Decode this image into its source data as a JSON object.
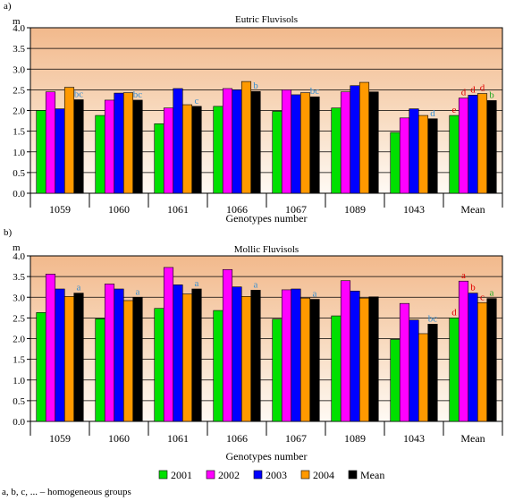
{
  "legend": {
    "items": [
      {
        "label": "2001",
        "color": "#00e000"
      },
      {
        "label": "2002",
        "color": "#ff00ff"
      },
      {
        "label": "2003",
        "color": "#0000ff"
      },
      {
        "label": "2004",
        "color": "#ff9900"
      },
      {
        "label": "Mean",
        "color": "#000000"
      }
    ]
  },
  "footnote": "a, b, c, ... – homogeneous groups",
  "chart_data": [
    {
      "type": "bar",
      "panel": "a)",
      "title": "Eutric Fluvisols",
      "unit": "m",
      "xlabel": "Genotypes number",
      "ylabel": "",
      "ylim": [
        0,
        4
      ],
      "yticks": [
        "0.0",
        "0.5",
        "1.0",
        "1.5",
        "2.0",
        "2.5",
        "3.0",
        "3.5",
        "4.0"
      ],
      "grid": true,
      "categories": [
        "1059",
        "1060",
        "1061",
        "1066",
        "1067",
        "1089",
        "1043",
        "Mean"
      ],
      "series": [
        {
          "name": "2001",
          "color": "#00e000",
          "values": [
            2.0,
            1.88,
            1.68,
            2.1,
            1.98,
            2.06,
            1.47,
            1.88
          ]
        },
        {
          "name": "2002",
          "color": "#ff00ff",
          "values": [
            2.45,
            2.25,
            2.06,
            2.53,
            2.5,
            2.45,
            1.82,
            2.3
          ]
        },
        {
          "name": "2003",
          "color": "#0000ff",
          "values": [
            2.04,
            2.42,
            2.53,
            2.5,
            2.38,
            2.6,
            2.04,
            2.37
          ]
        },
        {
          "name": "2004",
          "color": "#ff9900",
          "values": [
            2.56,
            2.43,
            2.14,
            2.7,
            2.43,
            2.68,
            1.88,
            2.41
          ]
        },
        {
          "name": "Mean",
          "color": "#000000",
          "values": [
            2.26,
            2.25,
            2.1,
            2.46,
            2.33,
            2.45,
            1.8,
            2.24
          ]
        }
      ],
      "annotations": [
        {
          "category": "1059",
          "series": "Mean",
          "text": "bc",
          "color": "#3a8fd0"
        },
        {
          "category": "1060",
          "series": "Mean",
          "text": "bc",
          "color": "#3a8fd0"
        },
        {
          "category": "1061",
          "series": "Mean",
          "text": "c",
          "color": "#3a8fd0"
        },
        {
          "category": "1066",
          "series": "Mean",
          "text": "b",
          "color": "#3a8fd0"
        },
        {
          "category": "1067",
          "series": "Mean",
          "text": "bc",
          "color": "#3a8fd0"
        },
        {
          "category": "1043",
          "series": "Mean",
          "text": "d",
          "color": "#3a8fd0"
        },
        {
          "category": "Mean",
          "series": "2001",
          "text": "e",
          "color": "#e00000"
        },
        {
          "category": "Mean",
          "series": "2002",
          "text": "d",
          "color": "#e00000"
        },
        {
          "category": "Mean",
          "series": "2003",
          "text": "d",
          "color": "#e00000"
        },
        {
          "category": "Mean",
          "series": "2004",
          "text": "d",
          "color": "#e00000"
        },
        {
          "category": "Mean",
          "series": "Mean",
          "text": "b",
          "color": "#22aa22"
        }
      ]
    },
    {
      "type": "bar",
      "panel": "b)",
      "title": "Mollic Fluvisols",
      "unit": "m",
      "xlabel": "Genotypes number",
      "ylabel": "",
      "ylim": [
        0,
        4
      ],
      "yticks": [
        "0.0",
        "0.5",
        "1.0",
        "1.5",
        "2.0",
        "2.5",
        "3.0",
        "3.5",
        "4.0"
      ],
      "grid": true,
      "categories": [
        "1059",
        "1060",
        "1061",
        "1066",
        "1067",
        "1089",
        "1043",
        "Mean"
      ],
      "series": [
        {
          "name": "2001",
          "color": "#00e000",
          "values": [
            2.63,
            2.48,
            2.73,
            2.68,
            2.47,
            2.55,
            1.98,
            2.5
          ]
        },
        {
          "name": "2002",
          "color": "#ff00ff",
          "values": [
            3.56,
            3.32,
            3.72,
            3.67,
            3.18,
            3.4,
            2.85,
            3.39
          ]
        },
        {
          "name": "2003",
          "color": "#0000ff",
          "values": [
            3.2,
            3.2,
            3.3,
            3.25,
            3.2,
            3.15,
            2.45,
            3.1
          ]
        },
        {
          "name": "2004",
          "color": "#ff9900",
          "values": [
            3.02,
            2.92,
            3.08,
            3.02,
            2.98,
            2.98,
            2.12,
            2.87
          ]
        },
        {
          "name": "Mean",
          "color": "#000000",
          "values": [
            3.1,
            3.0,
            3.2,
            3.17,
            2.95,
            3.01,
            2.35,
            2.97
          ]
        }
      ],
      "annotations": [
        {
          "category": "1059",
          "series": "Mean",
          "text": "a",
          "color": "#3a8fd0"
        },
        {
          "category": "1060",
          "series": "Mean",
          "text": "a",
          "color": "#3a8fd0"
        },
        {
          "category": "1061",
          "series": "Mean",
          "text": "a",
          "color": "#3a8fd0"
        },
        {
          "category": "1066",
          "series": "Mean",
          "text": "a",
          "color": "#3a8fd0"
        },
        {
          "category": "1067",
          "series": "Mean",
          "text": "a",
          "color": "#3a8fd0"
        },
        {
          "category": "1043",
          "series": "Mean",
          "text": "bc",
          "color": "#3a8fd0"
        },
        {
          "category": "Mean",
          "series": "2001",
          "text": "d",
          "color": "#e00000"
        },
        {
          "category": "Mean",
          "series": "2002",
          "text": "a",
          "color": "#e00000"
        },
        {
          "category": "Mean",
          "series": "2003",
          "text": "b",
          "color": "#e00000"
        },
        {
          "category": "Mean",
          "series": "2004",
          "text": "c",
          "color": "#e00000"
        },
        {
          "category": "Mean",
          "series": "Mean",
          "text": "a",
          "color": "#22aa22"
        }
      ]
    }
  ]
}
